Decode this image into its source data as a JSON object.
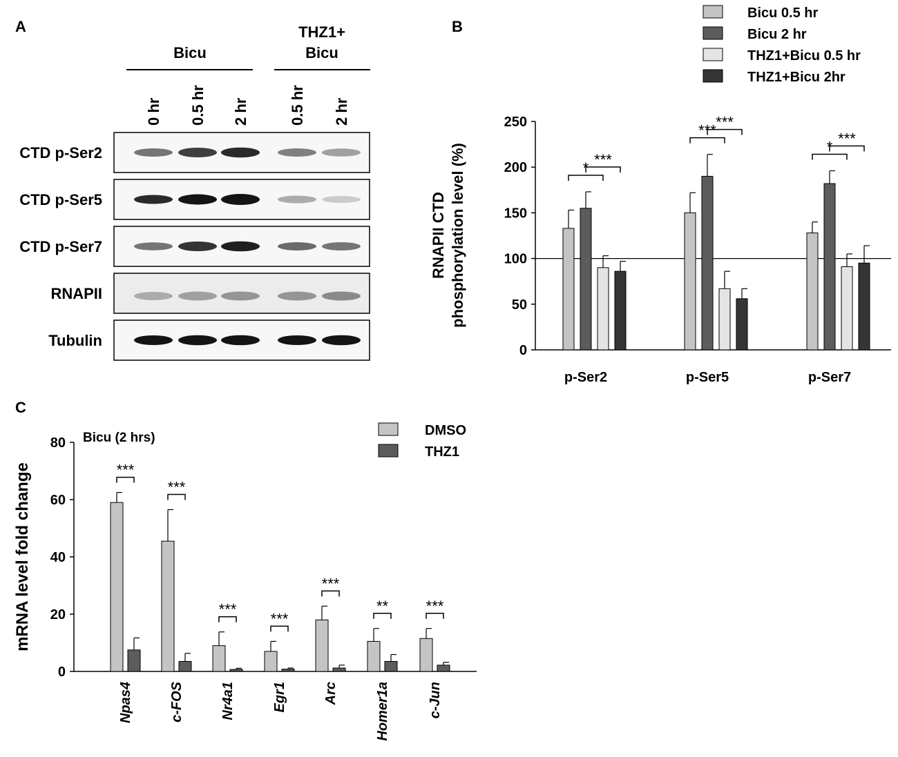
{
  "panelA": {
    "letter": "A",
    "group_bicu": "Bicu",
    "group_thz1_line1": "THZ1+",
    "group_thz1_line2": "Bicu",
    "lanes": [
      "0 hr",
      "0.5 hr",
      "2 hr",
      "0.5 hr",
      "2 hr"
    ],
    "blots": [
      {
        "label": "CTD p-Ser2",
        "intensity": [
          0.55,
          0.8,
          0.9,
          0.5,
          0.35
        ],
        "thickness": [
          0.6,
          0.8,
          0.85,
          0.6,
          0.55
        ]
      },
      {
        "label": "CTD p-Ser5",
        "intensity": [
          0.9,
          1.0,
          1.0,
          0.3,
          0.15
        ],
        "thickness": [
          0.7,
          0.9,
          1.0,
          0.5,
          0.4
        ]
      },
      {
        "label": "CTD p-Ser7",
        "intensity": [
          0.55,
          0.85,
          0.95,
          0.6,
          0.55
        ],
        "thickness": [
          0.55,
          0.8,
          0.85,
          0.6,
          0.6
        ]
      },
      {
        "label": "RNAPII",
        "intensity": [
          0.3,
          0.35,
          0.4,
          0.4,
          0.45
        ],
        "thickness": [
          0.6,
          0.7,
          0.7,
          0.7,
          0.7
        ]
      },
      {
        "label": "Tubulin",
        "intensity": [
          1.0,
          1.0,
          1.0,
          1.0,
          1.0
        ],
        "thickness": [
          0.8,
          0.85,
          0.85,
          0.8,
          0.85
        ]
      }
    ]
  },
  "panelB": {
    "letter": "B",
    "ylabel_line1": "RNAPII CTD",
    "ylabel_line2": "phosphorylation level (%)",
    "colors": [
      "#c4c4c4",
      "#5c5c5c",
      "#e4e4e4",
      "#353535"
    ]
  },
  "panelC": {
    "letter": "C",
    "annotation": "Bicu (2 hrs)",
    "ylabel": "mRNA level fold change",
    "colors": [
      "#c4c4c4",
      "#5c5c5c"
    ]
  },
  "chart_data": [
    {
      "type": "bar",
      "categories": [
        "p-Ser2",
        "p-Ser5",
        "p-Ser7"
      ],
      "series": [
        {
          "name": "Bicu 0.5 hr",
          "values": [
            133,
            150,
            128
          ],
          "errors": [
            20,
            22,
            12
          ]
        },
        {
          "name": "Bicu 2 hr",
          "values": [
            155,
            190,
            182
          ],
          "errors": [
            18,
            24,
            14
          ]
        },
        {
          "name": "THZ1+Bicu 0.5 hr",
          "values": [
            90,
            67,
            91
          ],
          "errors": [
            13,
            19,
            14
          ]
        },
        {
          "name": "THZ1+Bicu 2hr",
          "values": [
            86,
            56,
            95
          ],
          "errors": [
            11,
            11,
            19
          ]
        }
      ],
      "ylim": [
        0,
        250
      ],
      "yticks": [
        0,
        50,
        100,
        150,
        200,
        250
      ],
      "reference_line": 100,
      "significance": [
        {
          "category": 0,
          "from": 0,
          "to": 2,
          "label": "*"
        },
        {
          "category": 0,
          "from": 1,
          "to": 3,
          "label": "***"
        },
        {
          "category": 1,
          "from": 0,
          "to": 2,
          "label": "***"
        },
        {
          "category": 1,
          "from": 1,
          "to": 3,
          "label": "***"
        },
        {
          "category": 2,
          "from": 0,
          "to": 2,
          "label": "*"
        },
        {
          "category": 2,
          "from": 1,
          "to": 3,
          "label": "***"
        }
      ],
      "legend_position": "top-right"
    },
    {
      "type": "bar",
      "categories": [
        "Npas4",
        "c-FOS",
        "Nr4a1",
        "Egr1",
        "Arc",
        "Homer1a",
        "c-Jun"
      ],
      "series": [
        {
          "name": "DMSO",
          "values": [
            59,
            45.5,
            9,
            7,
            18,
            10.5,
            11.5
          ],
          "errors": [
            3.5,
            11,
            4.8,
            3.5,
            4.8,
            4.5,
            3.5
          ]
        },
        {
          "name": "THZ1",
          "values": [
            7.5,
            3.5,
            0.7,
            0.8,
            1.2,
            3.5,
            2.2
          ],
          "errors": [
            4.2,
            2.8,
            0.4,
            0.4,
            1.0,
            2.4,
            1.0
          ]
        }
      ],
      "ylim": [
        0,
        80
      ],
      "yticks": [
        0,
        20,
        40,
        60,
        80
      ],
      "significance": [
        "***",
        "***",
        "***",
        "***",
        "***",
        "**",
        "***"
      ],
      "legend_position": "top-right"
    }
  ]
}
